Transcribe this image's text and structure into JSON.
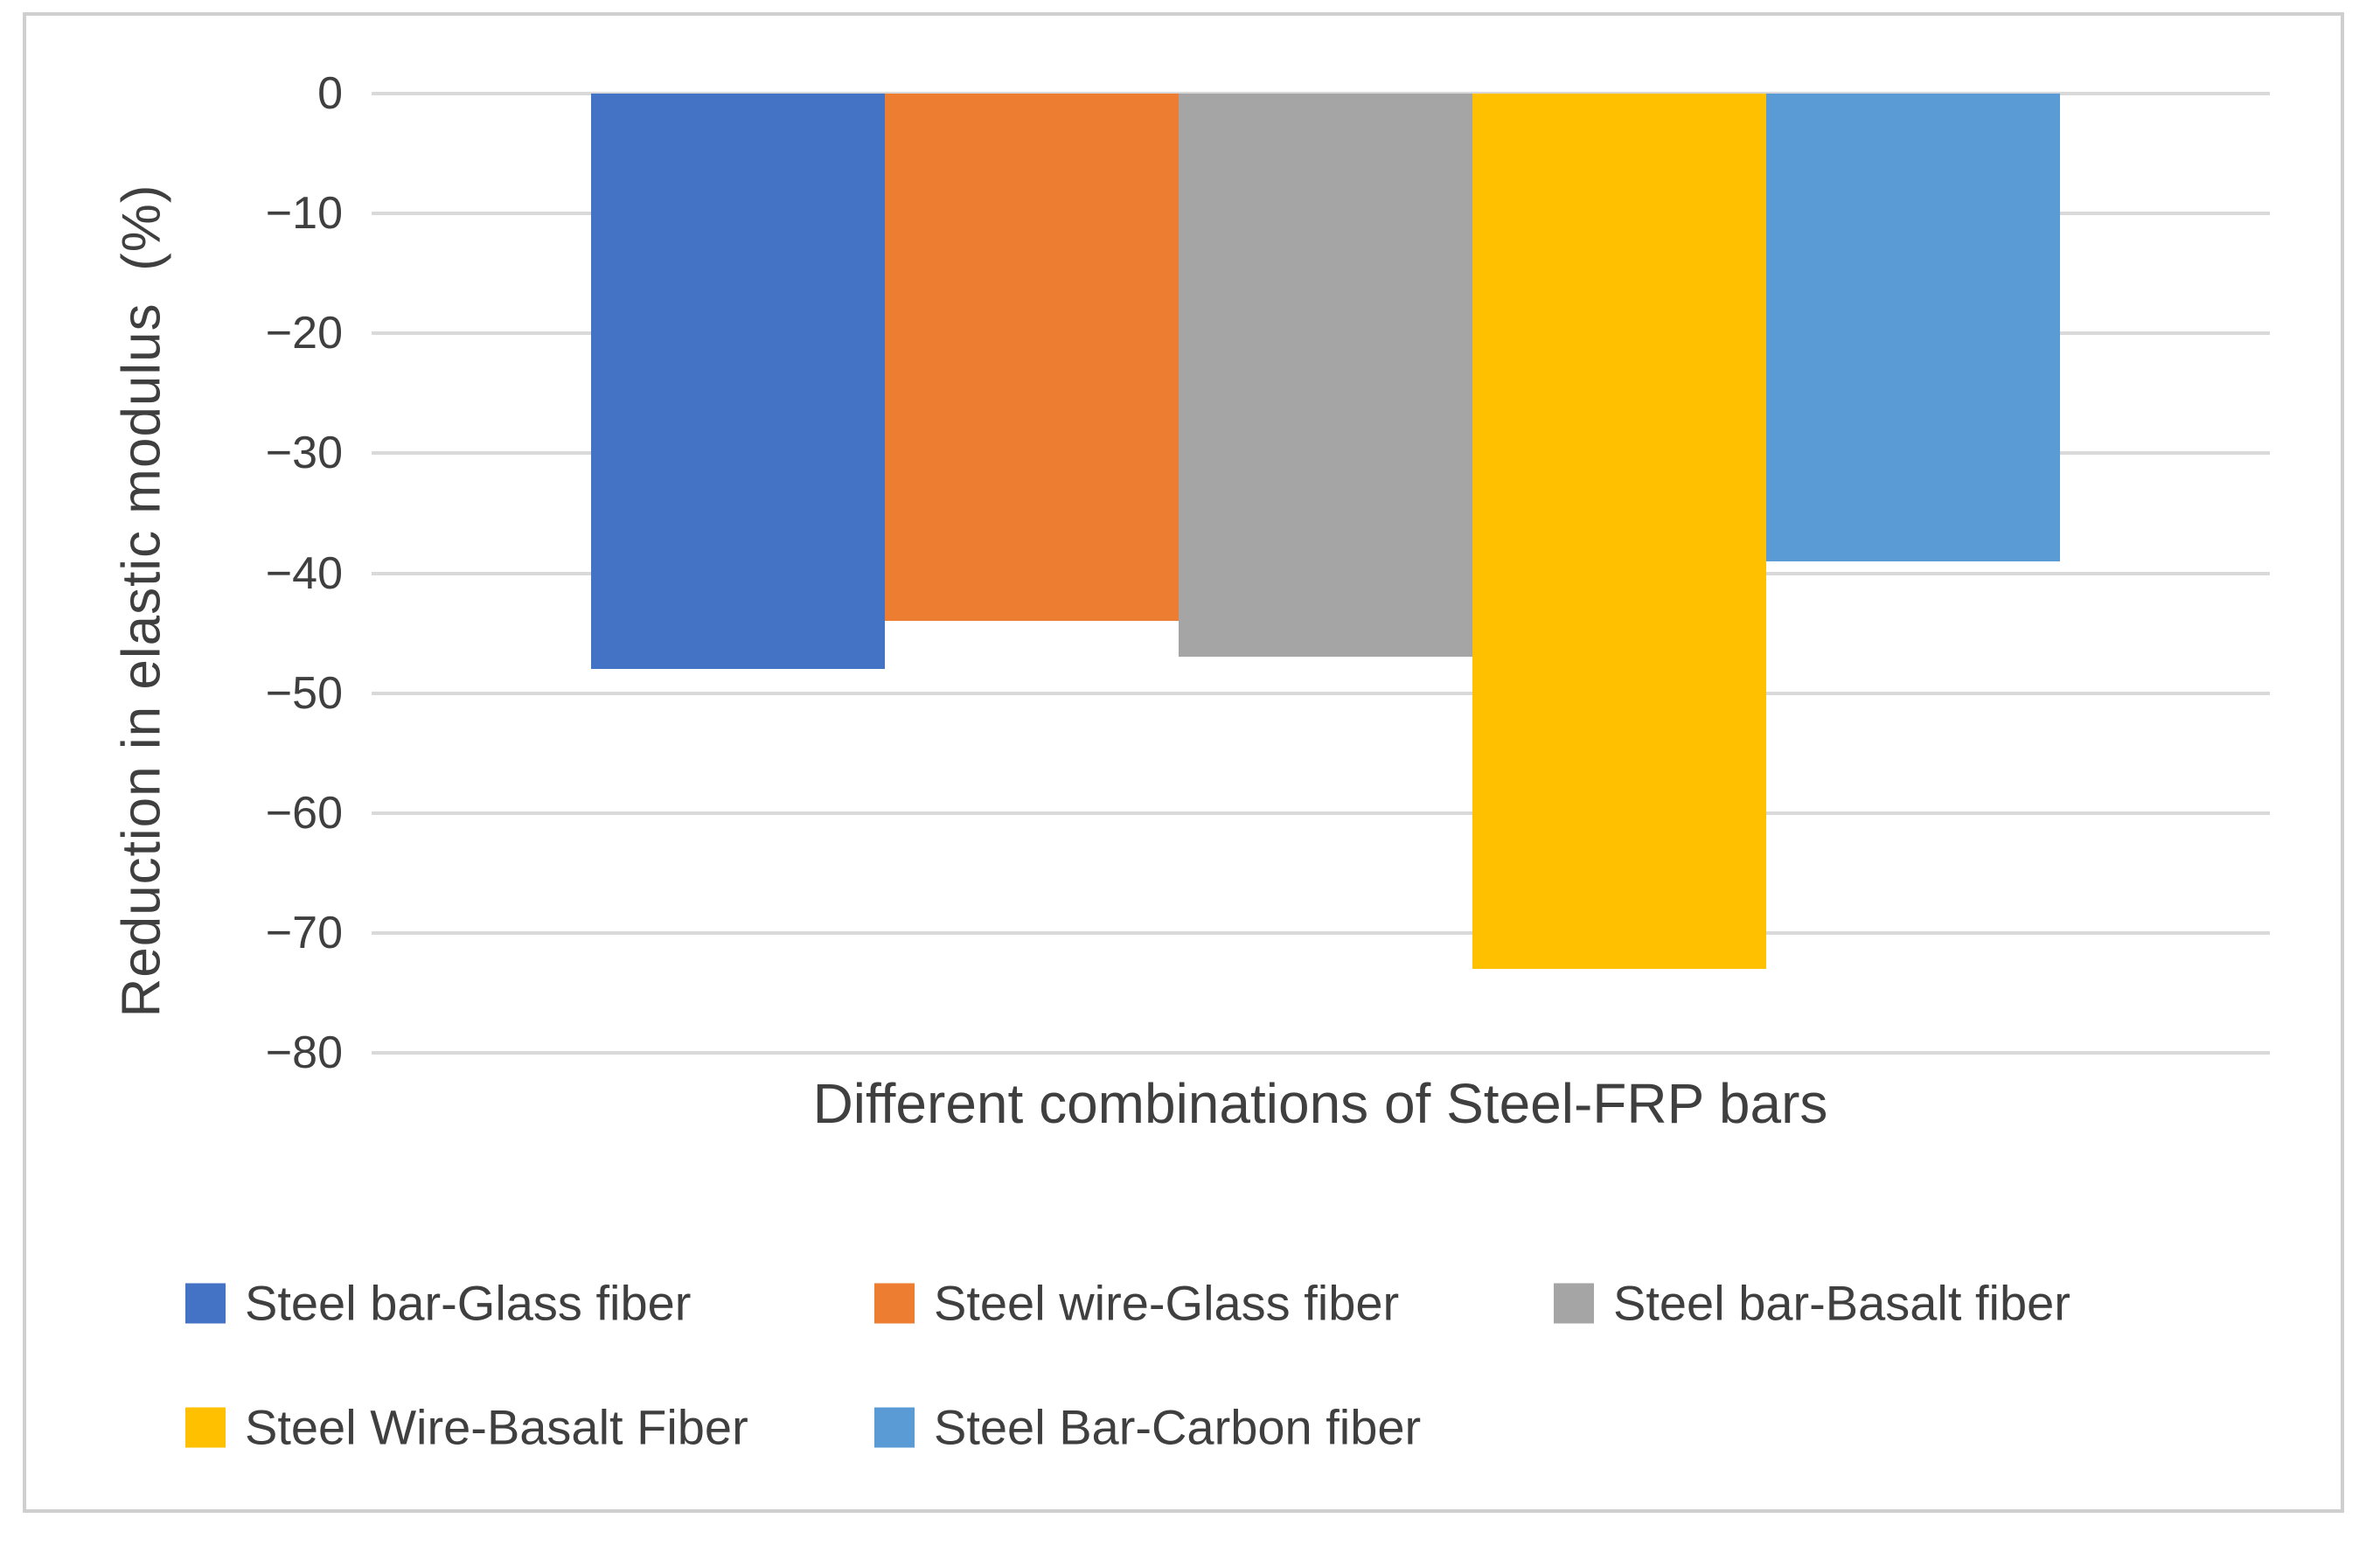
{
  "style": {
    "background": "#ffffff",
    "frame_border": "#cfcfcf",
    "gridline_color": "#d9d9d9",
    "text_color": "#3f3f3f"
  },
  "chart_data": {
    "type": "bar",
    "title": "",
    "xlabel": "Different combinations of Steel-FRP bars",
    "ylabel": "Reduction in elastic modulus  (%)",
    "categories": [
      "Steel bar-Glass fiber",
      "Steel wire-Glass fiber",
      "Steel bar-Basalt fiber",
      "Steel Wire-Basalt Fiber",
      "Steel Bar-Carbon fiber"
    ],
    "values": [
      -48,
      -44,
      -47,
      -73,
      -39
    ],
    "series_colors": [
      "#4472C4",
      "#ED7D31",
      "#A5A5A5",
      "#FFC000",
      "#5B9BD5"
    ],
    "ylim": [
      -80,
      0
    ],
    "ytick_step": 10,
    "ytick_labels": [
      "0",
      "−10",
      "−20",
      "−30",
      "−40",
      "−50",
      "−60",
      "−70",
      "−80"
    ],
    "grid": true,
    "legend_position": "bottom",
    "legend_rows": [
      [
        0,
        1,
        2
      ],
      [
        3,
        4
      ]
    ]
  }
}
